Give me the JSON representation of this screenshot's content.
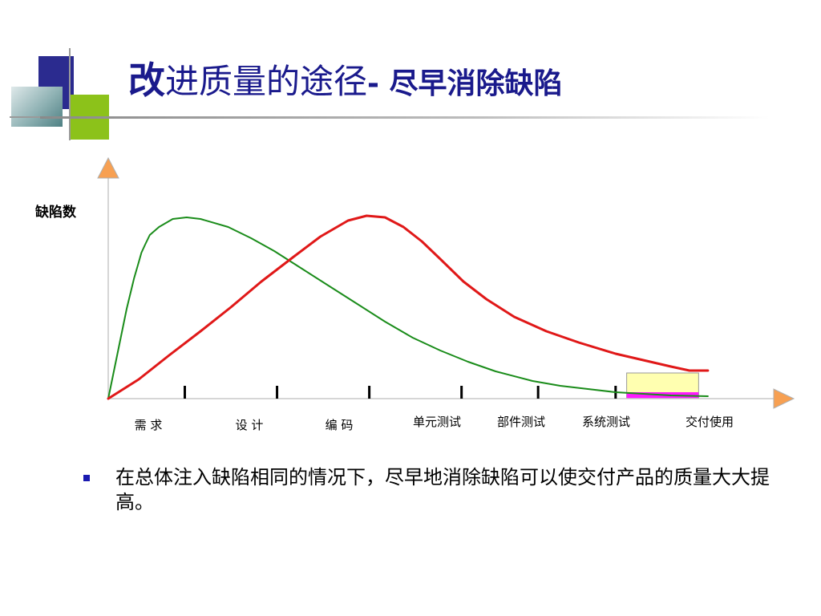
{
  "slide": {
    "title_first": "改",
    "title_rest": "进质量的途径",
    "title_sub": "- 尽早消除缺陷"
  },
  "chart_data": {
    "type": "line",
    "ylabel": "缺陷数",
    "categories": [
      "需 求",
      "设 计",
      "编 码",
      "单元测试",
      "部件测试",
      "系统测试",
      "交付使用"
    ],
    "series": [
      {
        "color": "#1a8c1a",
        "x": [
          0.0,
          0.1,
          0.2,
          0.28,
          0.33,
          0.36,
          0.4,
          0.45,
          0.55,
          0.7,
          0.85,
          1.0,
          1.3,
          1.55,
          1.8,
          2.1,
          2.4,
          2.7,
          3.0,
          3.3,
          3.6,
          3.9,
          4.2,
          4.6,
          4.9,
          5.2,
          5.5,
          5.8,
          6.1,
          6.5
        ],
        "y": [
          0.0,
          28.0,
          56.0,
          75.0,
          85.0,
          91.0,
          96.0,
          102.0,
          107.0,
          112.0,
          113.0,
          112.0,
          107.0,
          100.0,
          92.0,
          81.0,
          70.0,
          59.0,
          48.0,
          38.0,
          30.0,
          23.0,
          17.0,
          11.0,
          8.0,
          6.0,
          4.0,
          3.0,
          2.0,
          1.5
        ]
      },
      {
        "color": "#e01818",
        "x": [
          0.0,
          0.33,
          0.66,
          1.0,
          1.33,
          1.66,
          2.0,
          2.3,
          2.6,
          2.8,
          3.0,
          3.2,
          3.4,
          3.6,
          3.85,
          4.1,
          4.4,
          4.75,
          5.1,
          5.5,
          5.8,
          6.1,
          6.3,
          6.5
        ],
        "y": [
          0.0,
          12.0,
          27.0,
          42.0,
          57.0,
          73.0,
          88.0,
          101.0,
          111.0,
          114.0,
          113.0,
          107.0,
          98.0,
          87.0,
          73.0,
          62.0,
          51.0,
          42.0,
          35.0,
          28.0,
          24.0,
          20.0,
          17.5,
          17.5
        ]
      }
    ],
    "xlim": [
      0,
      7.04
    ],
    "ylim": [
      0,
      136
    ],
    "tick_positions": [
      0.83,
      1.83,
      2.83,
      3.83,
      4.66,
      5.5
    ],
    "highlight": {
      "x0": 5.62,
      "x1": 6.4,
      "y0": 0,
      "y1": 16,
      "bar_top": 4,
      "fill": "#ffffb0",
      "bar_fill": "#ff1aff"
    },
    "arrow_fill": "#f7a052"
  },
  "bullet": {
    "text": "在总体注入缺陷相同的情况下，尽早地消除缺陷可以使交付产品的质量大大提高。",
    "color": "#1a1ab0"
  }
}
